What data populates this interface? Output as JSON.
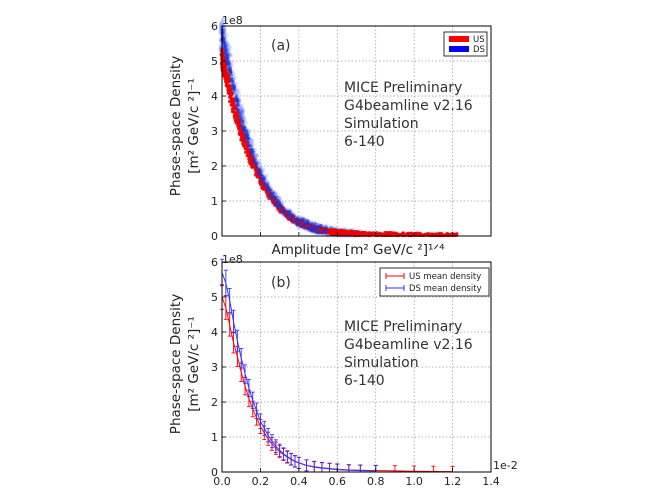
{
  "chart_data": [
    {
      "id": "a",
      "type": "scatter",
      "panel_label": "(a)",
      "ylabel_line1": "Phase-space Density",
      "ylabel_line2": "[m² GeV/c ²]⁻¹",
      "xlabel": "Amplitude [m² GeV/c ²]¹ᐟ⁴",
      "y_multiplier": "1e8",
      "xlim": [
        0,
        1.4
      ],
      "ylim": [
        0,
        6
      ],
      "yticks": [
        "0",
        "1",
        "2",
        "3",
        "4",
        "5",
        "6"
      ],
      "grid": true,
      "legend_position": "top-right",
      "annotation": [
        "MICE Preliminary",
        "G4beamline v2.16",
        "Simulation",
        "6-140"
      ],
      "series": [
        {
          "name": "US",
          "color": "#ff0000",
          "x": [
            0.0,
            0.025,
            0.05,
            0.075,
            0.1,
            0.15,
            0.2,
            0.25,
            0.3,
            0.35,
            0.4,
            0.5,
            0.6,
            0.7,
            0.8,
            0.9,
            1.0,
            1.1,
            1.2
          ],
          "y": [
            5.1,
            4.5,
            3.9,
            3.4,
            2.9,
            2.2,
            1.6,
            1.15,
            0.8,
            0.55,
            0.38,
            0.18,
            0.1,
            0.06,
            0.04,
            0.03,
            0.02,
            0.015,
            0.01
          ]
        },
        {
          "name": "DS",
          "color": "#0000ff",
          "x": [
            0.0,
            0.025,
            0.05,
            0.075,
            0.1,
            0.15,
            0.2,
            0.25,
            0.3,
            0.35,
            0.4,
            0.5,
            0.6,
            0.7
          ],
          "y": [
            5.8,
            5.1,
            4.5,
            3.9,
            3.3,
            2.5,
            1.75,
            1.25,
            0.85,
            0.6,
            0.4,
            0.2,
            0.1,
            0.05
          ]
        }
      ]
    },
    {
      "id": "b",
      "type": "line",
      "panel_label": "(b)",
      "ylabel_line1": "Phase-space Density",
      "ylabel_line2": "[m² GeV/c ²]⁻¹",
      "xlabel": "",
      "y_multiplier": "1e8",
      "x_multiplier": "1e-2",
      "xlim": [
        0,
        1.4
      ],
      "ylim": [
        0,
        6
      ],
      "xticks": [
        "0.0",
        "0.2",
        "0.4",
        "0.6",
        "0.8",
        "1.0",
        "1.2",
        "1.4"
      ],
      "yticks": [
        "0",
        "1",
        "2",
        "3",
        "4",
        "5",
        "6"
      ],
      "grid": true,
      "legend_position": "top-right",
      "annotation": [
        "MICE Preliminary",
        "G4beamline v2.16",
        "Simulation",
        "6-140"
      ],
      "series": [
        {
          "name": "US mean density",
          "color": "#ff0000",
          "x": [
            0.0,
            0.02,
            0.04,
            0.06,
            0.08,
            0.1,
            0.12,
            0.14,
            0.16,
            0.18,
            0.2,
            0.22,
            0.24,
            0.26,
            0.28,
            0.3,
            0.32,
            0.34,
            0.36,
            0.38,
            0.4,
            0.44,
            0.48,
            0.52,
            0.56,
            0.6,
            0.66,
            0.72,
            0.8,
            0.9,
            1.0,
            1.1,
            1.2
          ],
          "y": [
            5.0,
            4.7,
            4.2,
            3.7,
            3.3,
            2.85,
            2.45,
            2.1,
            1.8,
            1.55,
            1.3,
            1.12,
            0.95,
            0.8,
            0.68,
            0.58,
            0.5,
            0.42,
            0.36,
            0.3,
            0.26,
            0.19,
            0.15,
            0.12,
            0.1,
            0.08,
            0.06,
            0.05,
            0.04,
            0.03,
            0.02,
            0.015,
            0.01
          ]
        },
        {
          "name": "DS mean density",
          "color": "#3333ff",
          "x": [
            0.0,
            0.02,
            0.04,
            0.06,
            0.08,
            0.1,
            0.12,
            0.14,
            0.16,
            0.18,
            0.2,
            0.22,
            0.24,
            0.26,
            0.28,
            0.3,
            0.32,
            0.34,
            0.36,
            0.38,
            0.4,
            0.44,
            0.48,
            0.52,
            0.56,
            0.6,
            0.66,
            0.72,
            0.8
          ],
          "y": [
            5.7,
            5.4,
            4.9,
            4.3,
            3.75,
            3.25,
            2.8,
            2.4,
            2.05,
            1.75,
            1.45,
            1.25,
            1.05,
            0.88,
            0.74,
            0.62,
            0.52,
            0.44,
            0.37,
            0.31,
            0.26,
            0.19,
            0.14,
            0.11,
            0.09,
            0.07,
            0.05,
            0.04,
            0.03
          ]
        }
      ]
    }
  ]
}
